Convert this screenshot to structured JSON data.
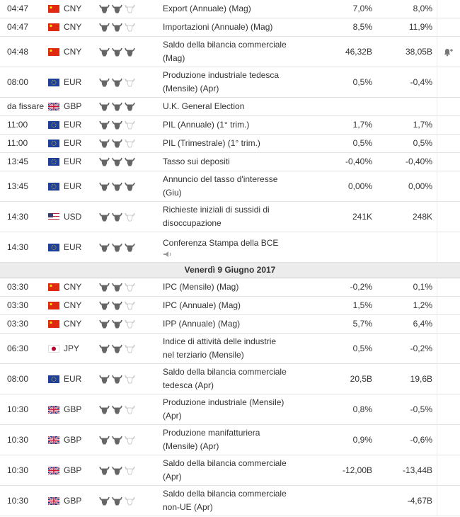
{
  "days": [
    {
      "rows": [
        {
          "time": "04:47",
          "currency": "CNY",
          "importance": 2,
          "event": "Export (Annuale) (Mag)",
          "forecast": "7,0%",
          "previous": "8,0%"
        },
        {
          "time": "04:47",
          "currency": "CNY",
          "importance": 2,
          "event": "Importazioni (Annuale) (Mag)",
          "forecast": "8,5%",
          "previous": "11,9%"
        },
        {
          "time": "04:48",
          "currency": "CNY",
          "importance": 3,
          "event": "Saldo della bilancia commerciale (Mag)",
          "forecast": "46,32B",
          "previous": "38,05B",
          "alert": true
        },
        {
          "time": "08:00",
          "currency": "EUR",
          "importance": 2,
          "event": "Produzione industriale tedesca (Mensile) (Apr)",
          "forecast": "0,5%",
          "previous": "-0,4%"
        },
        {
          "time": "da fissare",
          "currency": "GBP",
          "importance": 3,
          "event": "U.K. General Election"
        },
        {
          "time": "11:00",
          "currency": "EUR",
          "importance": 2,
          "event": "PIL (Annuale) (1° trim.)",
          "forecast": "1,7%",
          "previous": "1,7%"
        },
        {
          "time": "11:00",
          "currency": "EUR",
          "importance": 2,
          "event": "PIL (Trimestrale) (1° trim.)",
          "forecast": "0,5%",
          "previous": "0,5%"
        },
        {
          "time": "13:45",
          "currency": "EUR",
          "importance": 3,
          "event": "Tasso sui depositi",
          "forecast": "-0,40%",
          "previous": "-0,40%"
        },
        {
          "time": "13:45",
          "currency": "EUR",
          "importance": 3,
          "event": "Annuncio del tasso d'interesse (Giu)",
          "forecast": "0,00%",
          "previous": "0,00%"
        },
        {
          "time": "14:30",
          "currency": "USD",
          "importance": 2,
          "event": "Richieste iniziali di sussidi di disoccupazione",
          "forecast": "241K",
          "previous": "248K"
        },
        {
          "time": "14:30",
          "currency": "EUR",
          "importance": 3,
          "event": "Conferenza Stampa della BCE",
          "speech": true
        }
      ]
    },
    {
      "date": "Venerdì 9 Giugno 2017",
      "rows": [
        {
          "time": "03:30",
          "currency": "CNY",
          "importance": 2,
          "event": "IPC (Mensile) (Mag)",
          "forecast": "-0,2%",
          "previous": "0,1%"
        },
        {
          "time": "03:30",
          "currency": "CNY",
          "importance": 2,
          "event": "IPC (Annuale) (Mag)",
          "forecast": "1,5%",
          "previous": "1,2%"
        },
        {
          "time": "03:30",
          "currency": "CNY",
          "importance": 2,
          "event": "IPP (Annuale) (Mag)",
          "forecast": "5,7%",
          "previous": "6,4%"
        },
        {
          "time": "06:30",
          "currency": "JPY",
          "importance": 2,
          "event": "Indice di attività delle industrie nel terziario (Mensile)",
          "forecast": "0,5%",
          "previous": "-0,2%"
        },
        {
          "time": "08:00",
          "currency": "EUR",
          "importance": 2,
          "event": "Saldo della bilancia commerciale tedesca (Apr)",
          "forecast": "20,5B",
          "previous": "19,6B"
        },
        {
          "time": "10:30",
          "currency": "GBP",
          "importance": 2,
          "event": "Produzione industriale (Mensile) (Apr)",
          "forecast": "0,8%",
          "previous": "-0,5%"
        },
        {
          "time": "10:30",
          "currency": "GBP",
          "importance": 2,
          "event": "Produzione manifatturiera (Mensile) (Apr)",
          "forecast": "0,9%",
          "previous": "-0,6%"
        },
        {
          "time": "10:30",
          "currency": "GBP",
          "importance": 2,
          "event": "Saldo della bilancia commerciale (Apr)",
          "forecast": "-12,00B",
          "previous": "-13,44B"
        },
        {
          "time": "10:30",
          "currency": "GBP",
          "importance": 2,
          "event": "Saldo della bilancia commerciale non-UE (Apr)",
          "previous": "-4,67B"
        }
      ]
    }
  ]
}
